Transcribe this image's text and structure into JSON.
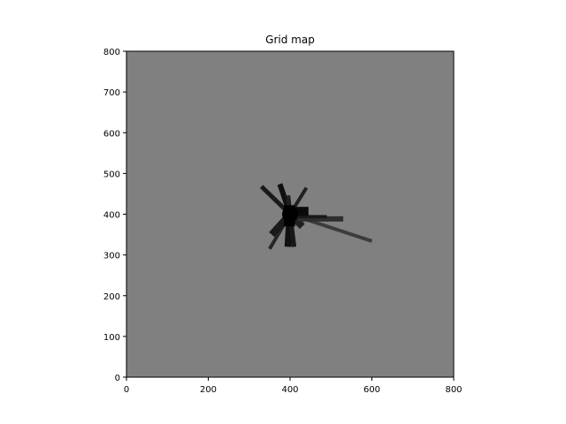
{
  "chart_data": {
    "type": "heatmap",
    "title": "Grid map",
    "xlabel": "",
    "ylabel": "",
    "xlim": [
      0,
      800
    ],
    "ylim": [
      0,
      800
    ],
    "xticks": [
      0,
      200,
      400,
      600,
      800
    ],
    "yticks": [
      0,
      100,
      200,
      300,
      400,
      500,
      600,
      700,
      800
    ],
    "grid": false,
    "background_value_color": "#808080",
    "occupied_color": "#000000",
    "robot_origin": [
      400,
      400
    ],
    "beams": [
      {
        "from": [
          400,
          400
        ],
        "to": [
          330,
          468
        ],
        "width": 5,
        "color": "#1a1a1a"
      },
      {
        "from": [
          400,
          400
        ],
        "to": [
          375,
          474
        ],
        "width": 6,
        "color": "#101010"
      },
      {
        "from": [
          400,
          400
        ],
        "to": [
          395,
          446
        ],
        "width": 5,
        "color": "#1e1e1e"
      },
      {
        "from": [
          400,
          400
        ],
        "to": [
          440,
          465
        ],
        "width": 4,
        "color": "#202020"
      },
      {
        "from": [
          400,
          400
        ],
        "to": [
          350,
          315
        ],
        "width": 4,
        "color": "#262626"
      },
      {
        "from": [
          400,
          400
        ],
        "to": [
          355,
          350
        ],
        "width": 8,
        "color": "#1a1a1a"
      },
      {
        "from": [
          400,
          400
        ],
        "to": [
          395,
          320
        ],
        "width": 8,
        "color": "#111111"
      },
      {
        "from": [
          400,
          400
        ],
        "to": [
          410,
          320
        ],
        "width": 5,
        "color": "#181818"
      },
      {
        "from": [
          400,
          400
        ],
        "to": [
          600,
          334
        ],
        "width": 4,
        "color": "#3c3c3c"
      },
      {
        "from": [
          400,
          400
        ],
        "to": [
          430,
          370
        ],
        "width": 8,
        "color": "#202020"
      }
    ],
    "patches": [
      {
        "x": [
          420,
          530
        ],
        "y": [
          382,
          395
        ],
        "color": "#2e2e2e"
      },
      {
        "x": [
          410,
          490
        ],
        "y": [
          390,
          398
        ],
        "color": "#1a1a1a"
      },
      {
        "x": [
          412,
          445
        ],
        "y": [
          396,
          418
        ],
        "color": "#0a0a0a"
      },
      {
        "x": [
          385,
          412
        ],
        "y": [
          370,
          422
        ],
        "color": "#000000"
      }
    ]
  }
}
